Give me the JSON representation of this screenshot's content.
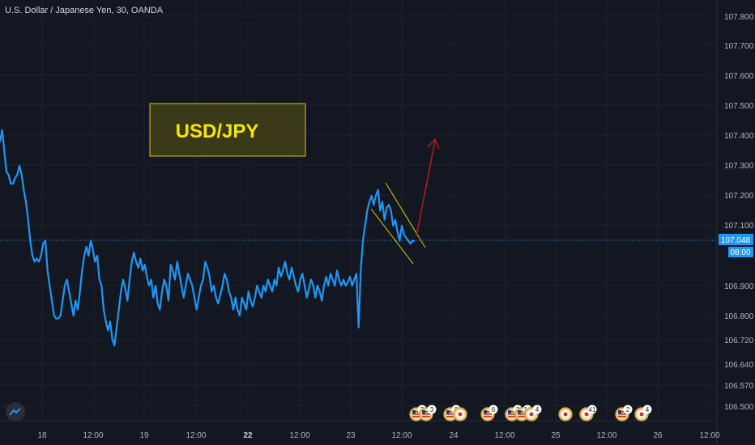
{
  "header": {
    "symbol_title": "U.S. Dollar / Japanese Yen, 30, OANDA"
  },
  "annotation": {
    "label": "USD/JPY",
    "text_color": "#f5e600",
    "border_color": "#d8c600",
    "fill_color": "#3a3a1a"
  },
  "colors": {
    "background": "#131722",
    "line": "#2196f3",
    "channel": "#d4d400",
    "arrow": "#b71c1c",
    "price_line": "#2196f3"
  },
  "chart_data": {
    "type": "line",
    "title": "U.S. Dollar / Japanese Yen, 30, OANDA",
    "price_ticks": [
      "107.800",
      "107.700",
      "107.600",
      "107.500",
      "107.400",
      "107.300",
      "107.200",
      "107.100",
      "107.048",
      "106.900",
      "106.800",
      "106.720",
      "106.640",
      "106.570",
      "106.500"
    ],
    "current_price": "107.048",
    "countdown": "08:00",
    "time_ticks": [
      "18",
      "12:00",
      "19",
      "12:00",
      "22",
      "12:00",
      "23",
      "12:00",
      "24",
      "12:00",
      "25",
      "12:00",
      "26",
      "12:00"
    ],
    "bold_time_tick": "22",
    "ylim": [
      106.45,
      107.85
    ],
    "series": [
      {
        "values": [
          107.38,
          107.42,
          107.35,
          107.28,
          107.27,
          107.24,
          107.24,
          107.26,
          107.27,
          107.3,
          107.27,
          107.22,
          107.18,
          107.12,
          107.05,
          107.0,
          106.98,
          106.99,
          106.98,
          107.0,
          107.04,
          107.05,
          106.95,
          106.9,
          106.85,
          106.8,
          106.79,
          106.79,
          106.8,
          106.85,
          106.9,
          106.92,
          106.88,
          106.84,
          106.8,
          106.85,
          106.82,
          106.88,
          106.95,
          107.0,
          107.03,
          107.0,
          107.05,
          107.02,
          106.98,
          107.0,
          106.92,
          106.9,
          106.82,
          106.78,
          106.75,
          106.78,
          106.72,
          106.7,
          106.76,
          106.82,
          106.88,
          106.92,
          106.89,
          106.85,
          106.92,
          106.98,
          107.01,
          106.98,
          106.96,
          106.99,
          106.95,
          106.97,
          106.93,
          106.9,
          106.92,
          106.86,
          106.9,
          106.84,
          106.82,
          106.88,
          106.92,
          106.9,
          106.85,
          106.97,
          106.95,
          106.92,
          106.98,
          106.94,
          106.9,
          106.86,
          106.9,
          106.94,
          106.92,
          106.9,
          106.86,
          106.82,
          106.86,
          106.9,
          106.92,
          106.98,
          106.96,
          106.93,
          106.88,
          106.9,
          106.86,
          106.84,
          106.87,
          106.9,
          106.94,
          106.92,
          106.88,
          106.86,
          106.82,
          106.86,
          106.82,
          106.8,
          106.86,
          106.84,
          106.82,
          106.88,
          106.85,
          106.83,
          106.86,
          106.9,
          106.88,
          106.86,
          106.9,
          106.88,
          106.92,
          106.9,
          106.88,
          106.92,
          106.9,
          106.96,
          106.93,
          106.95,
          106.98,
          106.94,
          106.92,
          106.96,
          106.93,
          106.9,
          106.88,
          106.92,
          106.94,
          106.9,
          106.86,
          106.89,
          106.92,
          106.9,
          106.86,
          106.9,
          106.88,
          106.85,
          106.9,
          106.93,
          106.9,
          106.94,
          106.92,
          106.9,
          106.95,
          106.92,
          106.9,
          106.92,
          106.9,
          106.91,
          106.93,
          106.9,
          106.92,
          106.94,
          106.76,
          106.95,
          107.05,
          107.1,
          107.15,
          107.18,
          107.2,
          107.17,
          107.2,
          107.22,
          107.15,
          107.18,
          107.12,
          107.16,
          107.17,
          107.15,
          107.1,
          107.12,
          107.08,
          107.05,
          107.1,
          107.07,
          107.06,
          107.05,
          107.04,
          107.05,
          107.048
        ]
      }
    ]
  },
  "events": [
    {
      "icon": "us-flag",
      "count": "2"
    },
    {
      "icon": "us-flag",
      "count": "3"
    },
    {
      "icon": "us-flag",
      "count": "8"
    },
    {
      "icon": "japan-flag",
      "count": ""
    },
    {
      "icon": "us-flag",
      "count": "6"
    },
    {
      "icon": "us-flag",
      "count": "3"
    },
    {
      "icon": "us-flag",
      "count": "14"
    },
    {
      "icon": "japan-flag",
      "count": "4"
    },
    {
      "icon": "japan-flag",
      "count": ""
    },
    {
      "icon": "japan-flag",
      "count": "41"
    },
    {
      "icon": "us-flag",
      "count": "2"
    },
    {
      "icon": "japan-flag",
      "count": "4"
    }
  ]
}
